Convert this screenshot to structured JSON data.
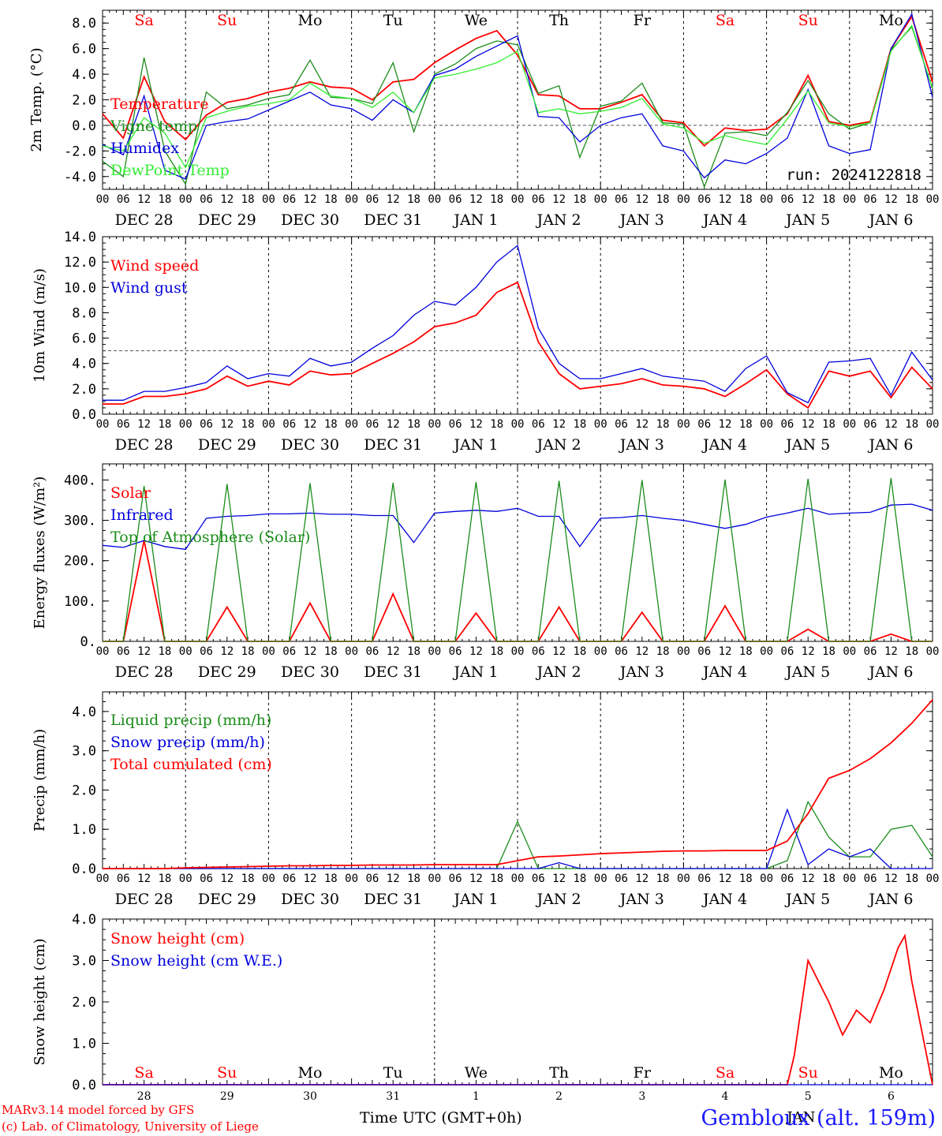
{
  "run_label": "run: 2024122818",
  "station": "Gembloux (alt. 159m)",
  "credits": [
    "MARv3.14 model forced by GFS",
    "(c) Lab. of Climatology, University of Liege"
  ],
  "xlabel": "Time UTC (GMT+0h)",
  "hour_ticks": [
    "00",
    "06",
    "12",
    "18"
  ],
  "days": [
    {
      "dow": "Sa",
      "date": "DEC 28",
      "num": "28",
      "weekend": true
    },
    {
      "dow": "Su",
      "date": "DEC 29",
      "num": "29",
      "weekend": true
    },
    {
      "dow": "Mo",
      "date": "DEC 30",
      "num": "30",
      "weekend": false
    },
    {
      "dow": "Tu",
      "date": "DEC 31",
      "num": "31",
      "weekend": false
    },
    {
      "dow": "We",
      "date": "JAN  1",
      "num": "1",
      "weekend": false
    },
    {
      "dow": "Th",
      "date": "JAN  2",
      "num": "2",
      "weekend": false
    },
    {
      "dow": "Fr",
      "date": "JAN  3",
      "num": "3",
      "weekend": false
    },
    {
      "dow": "Sa",
      "date": "JAN  4",
      "num": "4",
      "weekend": true
    },
    {
      "dow": "Su",
      "date": "JAN  5",
      "num": "5",
      "weekend": true
    },
    {
      "dow": "Mo",
      "date": "JAN  6",
      "num": "6",
      "weekend": false
    }
  ],
  "bottom_axis_extra": "JAN",
  "colors": {
    "red": "#ff0000",
    "green": "#1a8c1a",
    "blue": "#0000dd",
    "lightgreen": "#33ee33",
    "weekend": "#ff0000"
  },
  "chart_data": [
    {
      "type": "line",
      "ylabel": "2m Temp. (°C)",
      "ylim": [
        -5,
        9
      ],
      "yticks": [
        "-4.0",
        "-2.0",
        "0.0",
        "2.0",
        "4.0",
        "6.0",
        "8.0"
      ],
      "yticks_values": [
        -4,
        -2,
        0,
        2,
        4,
        6,
        8
      ],
      "ref_line": 0,
      "show_dow": true,
      "x_hours": [
        0,
        6,
        12,
        18,
        24,
        30,
        36,
        42,
        48,
        54,
        60,
        66,
        72,
        78,
        84,
        90,
        96,
        102,
        108,
        114,
        120,
        126,
        132,
        138,
        144,
        150,
        156,
        162,
        168,
        174,
        180,
        186,
        192,
        198,
        204,
        210,
        216,
        222,
        228,
        234,
        240
      ],
      "series": [
        {
          "name": "Temperature",
          "color": "red",
          "values": [
            0.9,
            -1.0,
            3.8,
            0.3,
            -1.1,
            0.8,
            1.8,
            2.1,
            2.6,
            2.9,
            3.4,
            3.0,
            2.9,
            2.0,
            3.4,
            3.6,
            4.9,
            5.9,
            6.8,
            7.4,
            5.5,
            2.4,
            2.3,
            1.3,
            1.3,
            1.8,
            2.4,
            0.4,
            0.2,
            -1.6,
            -0.2,
            -0.4,
            -0.3,
            0.9,
            3.9,
            0.3,
            0.0,
            0.3,
            6.0,
            8.5,
            3.4
          ]
        },
        {
          "name": "Vigne temp",
          "color": "green",
          "values": [
            -2.8,
            -4.0,
            5.3,
            -2.0,
            -4.6,
            2.6,
            1.3,
            1.6,
            2.1,
            2.4,
            5.1,
            2.2,
            2.1,
            1.7,
            4.9,
            -0.5,
            4.0,
            4.8,
            6.0,
            6.6,
            6.3,
            2.5,
            3.1,
            -2.5,
            1.5,
            1.9,
            3.3,
            0.2,
            0.1,
            -4.8,
            -0.6,
            -0.5,
            -0.8,
            1.0,
            3.5,
            0.9,
            -0.3,
            0.2,
            5.9,
            7.7,
            2.9
          ]
        },
        {
          "name": "Humidex",
          "color": "blue",
          "values": [
            -1.5,
            -2.3,
            2.3,
            -3.5,
            -4.2,
            0.0,
            0.3,
            0.5,
            1.2,
            1.9,
            2.6,
            1.6,
            1.3,
            0.4,
            2.0,
            1.0,
            3.9,
            4.4,
            5.4,
            6.2,
            7.0,
            0.7,
            0.6,
            -1.3,
            0.0,
            0.6,
            0.9,
            -1.6,
            -2.0,
            -4.1,
            -2.7,
            -3.0,
            -2.2,
            -1.0,
            2.8,
            -1.6,
            -2.2,
            -1.9,
            6.0,
            8.7,
            2.2
          ]
        },
        {
          "name": "DewPoint Temp",
          "color": "lightgreen",
          "values": [
            -1.6,
            -2.0,
            0.6,
            -0.6,
            -3.3,
            0.6,
            1.1,
            1.5,
            1.7,
            2.0,
            3.3,
            2.3,
            2.1,
            1.4,
            2.6,
            1.0,
            3.7,
            4.0,
            4.4,
            4.9,
            5.8,
            1.0,
            1.3,
            0.9,
            1.1,
            1.4,
            2.1,
            0.1,
            -0.2,
            -1.4,
            -0.8,
            -1.2,
            -1.5,
            0.5,
            2.7,
            0.2,
            -0.1,
            0.2,
            5.8,
            7.8,
            2.9
          ]
        }
      ]
    },
    {
      "type": "line",
      "ylabel": "10m Wind (m/s)",
      "ylim": [
        0,
        14
      ],
      "yticks": [
        "0.0",
        "2.0",
        "4.0",
        "6.0",
        "8.0",
        "10.0",
        "12.0",
        "14.0"
      ],
      "yticks_values": [
        0,
        2,
        4,
        6,
        8,
        10,
        12,
        14
      ],
      "ref_line": 5,
      "show_dow": false,
      "x_hours": [
        0,
        6,
        12,
        18,
        24,
        30,
        36,
        42,
        48,
        54,
        60,
        66,
        72,
        78,
        84,
        90,
        96,
        102,
        108,
        114,
        120,
        126,
        132,
        138,
        144,
        150,
        156,
        162,
        168,
        174,
        180,
        186,
        192,
        198,
        204,
        210,
        216,
        222,
        228,
        234,
        240
      ],
      "series": [
        {
          "name": "Wind speed",
          "color": "red",
          "values": [
            0.8,
            0.8,
            1.4,
            1.4,
            1.6,
            2.0,
            3.0,
            2.2,
            2.6,
            2.3,
            3.4,
            3.1,
            3.2,
            4.0,
            4.8,
            5.7,
            6.9,
            7.2,
            7.8,
            9.6,
            10.4,
            5.7,
            3.2,
            2.0,
            2.2,
            2.4,
            2.8,
            2.3,
            2.2,
            2.0,
            1.4,
            2.4,
            3.5,
            1.6,
            0.5,
            3.4,
            3.0,
            3.4,
            1.3,
            3.7,
            2.0
          ]
        },
        {
          "name": "Wind gust",
          "color": "blue",
          "values": [
            1.1,
            1.1,
            1.8,
            1.8,
            2.1,
            2.5,
            3.8,
            2.8,
            3.2,
            3.0,
            4.4,
            3.8,
            4.1,
            5.2,
            6.2,
            7.8,
            8.9,
            8.6,
            10.0,
            12.0,
            13.3,
            6.8,
            4.0,
            2.8,
            2.8,
            3.2,
            3.6,
            3.0,
            2.8,
            2.6,
            1.8,
            3.6,
            4.6,
            1.7,
            0.9,
            4.1,
            4.2,
            4.4,
            1.5,
            4.9,
            2.7
          ]
        }
      ]
    },
    {
      "type": "line",
      "ylabel": "Energy fluxes (W/m²)",
      "ylim": [
        0,
        440
      ],
      "yticks": [
        "0.",
        "100.",
        "200.",
        "300.",
        "400."
      ],
      "yticks_values": [
        0,
        100,
        200,
        300,
        400
      ],
      "show_dow": false,
      "x_hours": [
        0,
        6,
        12,
        18,
        24,
        30,
        36,
        42,
        48,
        54,
        60,
        66,
        72,
        78,
        84,
        90,
        96,
        102,
        108,
        114,
        120,
        126,
        132,
        138,
        144,
        150,
        156,
        162,
        168,
        174,
        180,
        186,
        192,
        198,
        204,
        210,
        216,
        222,
        228,
        234,
        240
      ],
      "series": [
        {
          "name": "Solar",
          "color": "red",
          "values": [
            0,
            0,
            250,
            0,
            0,
            0,
            85,
            0,
            0,
            0,
            95,
            0,
            0,
            0,
            118,
            0,
            0,
            0,
            70,
            0,
            0,
            0,
            85,
            0,
            0,
            0,
            72,
            0,
            0,
            0,
            88,
            0,
            0,
            0,
            30,
            0,
            0,
            0,
            18,
            0,
            0
          ]
        },
        {
          "name": "Infrared",
          "color": "blue",
          "values": [
            238,
            233,
            250,
            235,
            228,
            305,
            310,
            312,
            316,
            316,
            318,
            315,
            315,
            312,
            312,
            245,
            318,
            322,
            325,
            322,
            330,
            310,
            310,
            235,
            305,
            307,
            312,
            305,
            300,
            290,
            280,
            290,
            308,
            318,
            330,
            315,
            318,
            320,
            338,
            340,
            325
          ]
        },
        {
          "name": "Top of Atmosphere (Solar)",
          "color": "green",
          "values": [
            0,
            0,
            385,
            0,
            0,
            0,
            390,
            0,
            0,
            0,
            392,
            0,
            0,
            0,
            393,
            0,
            0,
            0,
            395,
            0,
            0,
            0,
            398,
            0,
            0,
            0,
            400,
            0,
            0,
            0,
            401,
            0,
            0,
            0,
            403,
            0,
            0,
            0,
            405,
            0,
            0
          ]
        }
      ]
    },
    {
      "type": "line",
      "ylabel": "Precip (mm/h)",
      "ylim": [
        0,
        4.5
      ],
      "yticks": [
        "0.0",
        "1.0",
        "2.0",
        "3.0",
        "4.0"
      ],
      "yticks_values": [
        0,
        1,
        2,
        3,
        4
      ],
      "show_dow": false,
      "x_hours": [
        0,
        6,
        12,
        18,
        24,
        30,
        36,
        42,
        48,
        54,
        60,
        66,
        72,
        78,
        84,
        90,
        96,
        102,
        108,
        114,
        120,
        126,
        132,
        138,
        144,
        150,
        156,
        162,
        168,
        174,
        180,
        186,
        192,
        198,
        204,
        210,
        216,
        222,
        228,
        234,
        240
      ],
      "series": [
        {
          "name": "Liquid precip (mm/h)",
          "color": "green",
          "values": [
            0,
            0,
            0,
            0,
            0,
            0,
            0,
            0,
            0,
            0,
            0,
            0,
            0,
            0,
            0,
            0,
            0,
            0,
            0,
            0,
            1.2,
            0,
            0,
            0,
            0,
            0,
            0,
            0,
            0,
            0,
            0,
            0,
            0,
            0.2,
            1.7,
            0.8,
            0.3,
            0.3,
            1.0,
            1.1,
            0.3
          ]
        },
        {
          "name": "Snow precip (mm/h)",
          "color": "blue",
          "values": [
            0,
            0,
            0,
            0,
            0,
            0,
            0,
            0,
            0,
            0,
            0,
            0,
            0,
            0,
            0,
            0,
            0,
            0,
            0,
            0,
            0,
            0,
            0.15,
            0,
            0,
            0,
            0,
            0,
            0,
            0,
            0,
            0,
            0,
            1.5,
            0.1,
            0.5,
            0.3,
            0.5,
            0,
            0,
            0
          ]
        },
        {
          "name": "Total cumulated (cm)",
          "color": "red",
          "values": [
            0,
            0,
            0,
            0,
            0.02,
            0.03,
            0.04,
            0.05,
            0.06,
            0.07,
            0.07,
            0.08,
            0.08,
            0.09,
            0.09,
            0.09,
            0.1,
            0.1,
            0.1,
            0.1,
            0.2,
            0.3,
            0.32,
            0.35,
            0.38,
            0.4,
            0.42,
            0.44,
            0.45,
            0.45,
            0.46,
            0.46,
            0.46,
            0.7,
            1.4,
            2.3,
            2.5,
            2.8,
            3.2,
            3.7,
            4.3
          ]
        }
      ]
    },
    {
      "type": "line",
      "ylabel": "Snow height (cm)",
      "ylim": [
        0,
        4
      ],
      "yticks": [
        "0.0",
        "1.0",
        "2.0",
        "3.0",
        "4.0"
      ],
      "yticks_values": [
        0,
        1,
        2,
        3,
        4
      ],
      "show_dow_inside": true,
      "x_hours": [
        0,
        6,
        12,
        18,
        24,
        30,
        36,
        42,
        48,
        54,
        60,
        66,
        72,
        78,
        84,
        90,
        96,
        102,
        108,
        114,
        120,
        126,
        132,
        138,
        144,
        150,
        156,
        162,
        168,
        174,
        180,
        186,
        192,
        198,
        200,
        204,
        210,
        214,
        218,
        222,
        226,
        230,
        232,
        234,
        240
      ],
      "series": [
        {
          "name": "Snow height (cm)",
          "color": "red",
          "values": [
            0,
            0,
            0,
            0,
            0,
            0,
            0,
            0,
            0,
            0,
            0,
            0,
            0,
            0,
            0,
            0,
            0,
            0,
            0,
            0,
            0,
            0,
            0,
            0,
            0,
            0,
            0,
            0,
            0,
            0,
            0,
            0,
            0,
            0,
            0.7,
            3.0,
            2.0,
            1.2,
            1.8,
            1.5,
            2.3,
            3.3,
            3.6,
            2.5,
            0
          ]
        },
        {
          "name": "Snow height (cm W.E.)",
          "color": "blue",
          "values": [
            0,
            0,
            0,
            0,
            0,
            0,
            0,
            0,
            0,
            0,
            0,
            0,
            0,
            0,
            0,
            0,
            0,
            0,
            0,
            0,
            0,
            0,
            0,
            0,
            0,
            0,
            0,
            0,
            0,
            0,
            0,
            0,
            0,
            0,
            0,
            0,
            0,
            0,
            0,
            0,
            0,
            0,
            0,
            0,
            0
          ]
        }
      ]
    }
  ]
}
